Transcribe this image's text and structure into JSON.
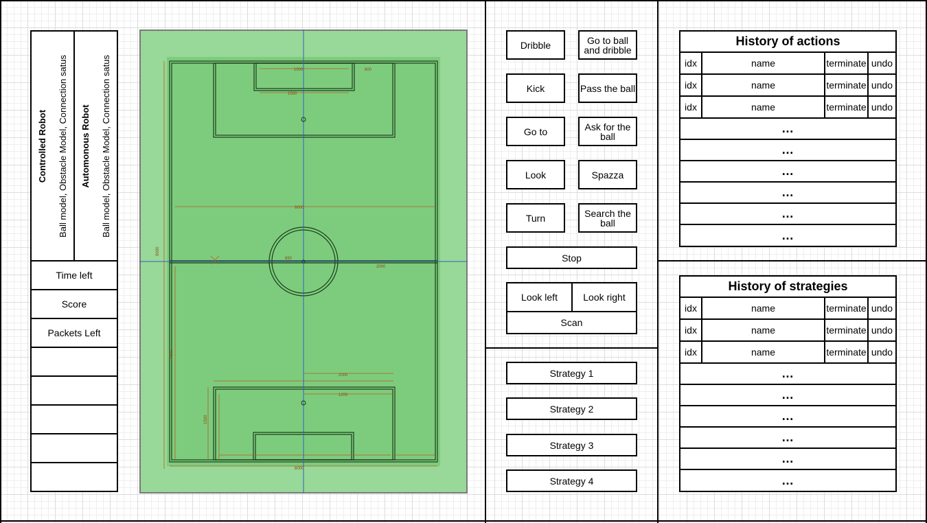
{
  "left_panel": {
    "controlled_robot": {
      "title": "Controlled Robot",
      "details": "Ball model, Obstacle Model, Connection satus"
    },
    "automonous_robot": {
      "title": "Automonous Robot",
      "details": "Ball model, Obstacle Model, Connection satus"
    },
    "info_rows": [
      "Time left",
      "Score",
      "Packets Left",
      "",
      "",
      "",
      "",
      ""
    ]
  },
  "field": {
    "colors": {
      "outer": "#98d898",
      "inner": "#7dcc7d",
      "line": "#1a3a1a",
      "dim": "#b85a1e",
      "axis": "#3060c0"
    },
    "dimension_labels": [
      "9000",
      "6000",
      "1500",
      "4500",
      "1000",
      "2000",
      "600",
      "1200",
      "650",
      "1500"
    ]
  },
  "actions": {
    "buttons": [
      [
        "Dribble",
        "Go to ball and dribble"
      ],
      [
        "Kick",
        "Pass the ball"
      ],
      [
        "Go to",
        "Ask for the ball"
      ],
      [
        "Look",
        "Spazza"
      ],
      [
        "Turn",
        "Search the ball"
      ]
    ],
    "stop": "Stop",
    "look_left": "Look left",
    "look_right": "Look right",
    "scan": "Scan"
  },
  "strategies": [
    "Strategy 1",
    "Strategy 2",
    "Strategy 3",
    "Strategy 4"
  ],
  "history_actions": {
    "title": "History of actions",
    "rows": [
      {
        "idx": "idx",
        "name": "name",
        "terminate": "terminate",
        "undo": "undo"
      },
      {
        "idx": "idx",
        "name": "name",
        "terminate": "terminate",
        "undo": "undo"
      },
      {
        "idx": "idx",
        "name": "name",
        "terminate": "terminate",
        "undo": "undo"
      }
    ],
    "ellipsis_rows": [
      "…",
      "…",
      "…",
      "…",
      "…",
      "…"
    ]
  },
  "history_strategies": {
    "title": "History of strategies",
    "rows": [
      {
        "idx": "idx",
        "name": "name",
        "terminate": "terminate",
        "undo": "undo"
      },
      {
        "idx": "idx",
        "name": "name",
        "terminate": "terminate",
        "undo": "undo"
      },
      {
        "idx": "idx",
        "name": "name",
        "terminate": "terminate",
        "undo": "undo"
      }
    ],
    "ellipsis_rows": [
      "…",
      "…",
      "…",
      "…",
      "…",
      "…"
    ]
  }
}
